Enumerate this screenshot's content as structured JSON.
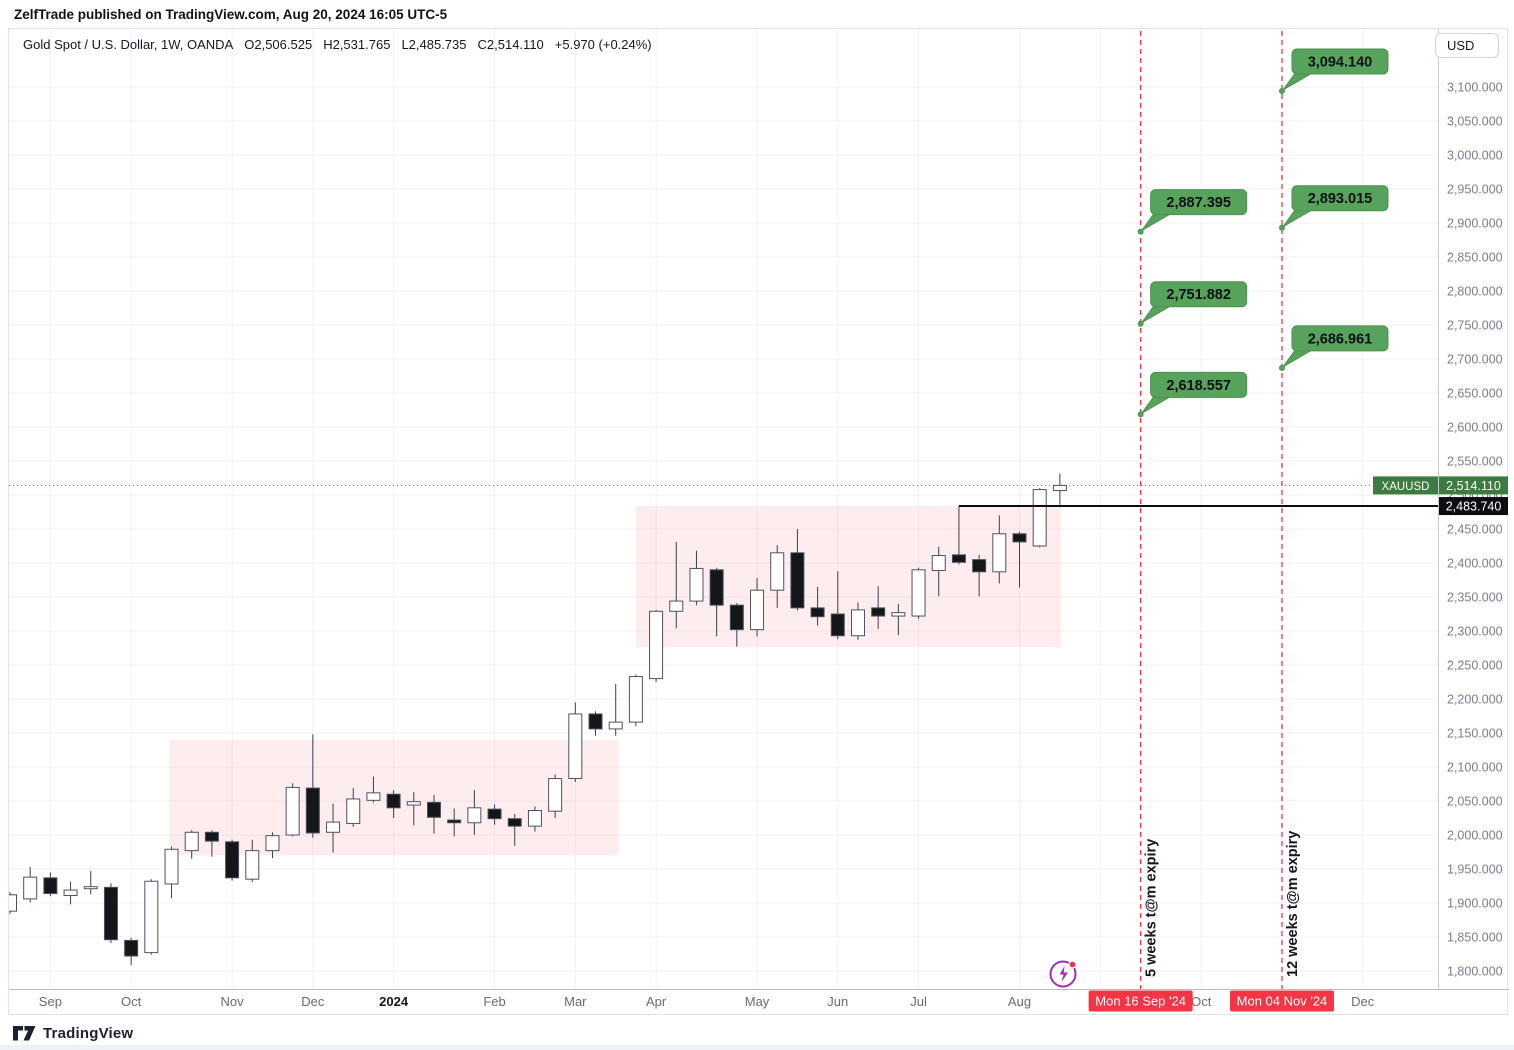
{
  "header": {
    "attribution": "ZelfTrade published on TradingView.com, Aug 20, 2024 16:05 UTC-5"
  },
  "legend": {
    "symbol_title": "Gold Spot / U.S. Dollar, 1W, OANDA",
    "ohlc_open": "O2,506.525",
    "ohlc_high": "H2,531.765",
    "ohlc_low": "L2,485.735",
    "ohlc_close": "C2,514.110",
    "change": "+5.970 (+0.24%)"
  },
  "axis_right": {
    "currency_label": "USD",
    "tick_min": 1800,
    "tick_max": 3100,
    "tick_step": 50,
    "current_price_label": "2,514.110",
    "symbol_tag": "XAUUSD",
    "ath_price_label": "2,483.740"
  },
  "axis_bottom": {
    "month_labels": [
      {
        "label": "Sep",
        "week": 2,
        "bold": false
      },
      {
        "label": "Oct",
        "week": 6,
        "bold": false
      },
      {
        "label": "Nov",
        "week": 11,
        "bold": false
      },
      {
        "label": "Dec",
        "week": 15,
        "bold": false
      },
      {
        "label": "2024",
        "week": 19,
        "bold": true
      },
      {
        "label": "Feb",
        "week": 24,
        "bold": false
      },
      {
        "label": "Mar",
        "week": 28,
        "bold": false
      },
      {
        "label": "Apr",
        "week": 32,
        "bold": false
      },
      {
        "label": "May",
        "week": 37,
        "bold": false
      },
      {
        "label": "Jun",
        "week": 41,
        "bold": false
      },
      {
        "label": "Jul",
        "week": 45,
        "bold": false
      },
      {
        "label": "Aug",
        "week": 50,
        "bold": false
      },
      {
        "label": "Oct",
        "week": 59,
        "bold": false
      },
      {
        "label": "Dec",
        "week": 67,
        "bold": false
      }
    ],
    "grid_weeks": [
      2,
      6,
      11,
      15,
      19,
      24,
      28,
      32,
      37,
      41,
      45,
      50,
      54,
      59,
      63,
      67
    ],
    "event_labels": [
      {
        "label": "Mon 16 Sep '24",
        "week": 56,
        "width": 104
      },
      {
        "label": "Mon 04 Nov '24",
        "week": 63,
        "width": 104
      }
    ]
  },
  "footer": {
    "brand": "TradingView"
  },
  "colors": {
    "label_green": "#3e7b41",
    "callout_green": "#57a35c",
    "callout_green_border": "#4a9150",
    "red": "#f23645",
    "purple": "#a02db8",
    "candle_up_fill": "#ffffff",
    "candle_down_fill": "#14161a",
    "candle_border": "#4d525f",
    "wick": "#3b3f4a",
    "zone_pink": "rgba(242,54,69,0.09)",
    "ath_line": "#0b0d12",
    "grid": "#f0f2f7",
    "axis_text": "#7a7e8a",
    "month_text": "#686c78",
    "dark_text": "#131722",
    "axis_line": "#b9bcc5",
    "separator": "#c7cad3"
  },
  "chart_data": {
    "type": "candlestick",
    "symbol": "XAUUSD",
    "title": "Gold Spot / U.S. Dollar",
    "interval": "1W",
    "exchange": "OANDA",
    "ylabel": "USD",
    "price_range": [
      1800,
      3100
    ],
    "grid": true,
    "current_price": 2514.11,
    "ath_line_price": 2483.74,
    "ath_line_from_week": 47,
    "candles_note": "columns: week_start_date, open, high, low, close",
    "candles": [
      [
        "2023-08-21",
        1888,
        1916,
        1884,
        1912
      ],
      [
        "2023-08-28",
        1906,
        1953,
        1901,
        1938
      ],
      [
        "2023-09-04",
        1937,
        1945,
        1910,
        1914
      ],
      [
        "2023-09-11",
        1911,
        1931,
        1898,
        1919
      ],
      [
        "2023-09-18",
        1921,
        1947,
        1913,
        1924
      ],
      [
        "2023-09-25",
        1923,
        1929,
        1841,
        1846
      ],
      [
        "2023-10-02",
        1845,
        1849,
        1809,
        1822
      ],
      [
        "2023-10-09",
        1827,
        1935,
        1824,
        1932
      ],
      [
        "2023-10-16",
        1928,
        1983,
        1907,
        1979
      ],
      [
        "2023-10-23",
        1977,
        2007,
        1965,
        2004
      ],
      [
        "2023-10-30",
        2004,
        2007,
        1968,
        1991
      ],
      [
        "2023-11-06",
        1990,
        1993,
        1933,
        1937
      ],
      [
        "2023-11-13",
        1935,
        1993,
        1931,
        1977
      ],
      [
        "2023-11-20",
        1977,
        2004,
        1966,
        1999
      ],
      [
        "2023-11-27",
        2000,
        2076,
        1998,
        2070
      ],
      [
        "2023-12-04",
        2069,
        2148,
        1996,
        2003
      ],
      [
        "2023-12-11",
        2004,
        2046,
        1974,
        2019
      ],
      [
        "2023-12-18",
        2017,
        2069,
        2012,
        2053
      ],
      [
        "2023-12-25",
        2051,
        2086,
        2048,
        2062
      ],
      [
        "2024-01-01",
        2060,
        2066,
        2025,
        2040
      ],
      [
        "2024-01-08",
        2044,
        2063,
        2014,
        2049
      ],
      [
        "2024-01-15",
        2048,
        2059,
        2002,
        2026
      ],
      [
        "2024-01-22",
        2022,
        2039,
        1998,
        2018
      ],
      [
        "2024-01-29",
        2018,
        2066,
        2000,
        2040
      ],
      [
        "2024-02-05",
        2038,
        2045,
        2015,
        2024
      ],
      [
        "2024-02-12",
        2024,
        2031,
        1984,
        2013
      ],
      [
        "2024-02-19",
        2013,
        2042,
        2005,
        2036
      ],
      [
        "2024-02-26",
        2035,
        2089,
        2025,
        2083
      ],
      [
        "2024-03-04",
        2083,
        2195,
        2078,
        2178
      ],
      [
        "2024-03-11",
        2178,
        2182,
        2146,
        2156
      ],
      [
        "2024-03-18",
        2156,
        2222,
        2146,
        2166
      ],
      [
        "2024-03-25",
        2166,
        2236,
        2160,
        2233
      ],
      [
        "2024-04-01",
        2230,
        2331,
        2225,
        2329
      ],
      [
        "2024-04-08",
        2329,
        2431,
        2304,
        2344
      ],
      [
        "2024-04-15",
        2344,
        2418,
        2338,
        2392
      ],
      [
        "2024-04-22",
        2390,
        2393,
        2292,
        2338
      ],
      [
        "2024-04-29",
        2338,
        2341,
        2277,
        2302
      ],
      [
        "2024-05-06",
        2302,
        2378,
        2292,
        2360
      ],
      [
        "2024-05-13",
        2360,
        2426,
        2334,
        2415
      ],
      [
        "2024-05-20",
        2415,
        2450,
        2330,
        2334
      ],
      [
        "2024-05-27",
        2334,
        2365,
        2308,
        2321
      ],
      [
        "2024-06-03",
        2325,
        2388,
        2288,
        2293
      ],
      [
        "2024-06-10",
        2293,
        2342,
        2287,
        2331
      ],
      [
        "2024-06-17",
        2334,
        2366,
        2303,
        2322
      ],
      [
        "2024-06-24",
        2322,
        2340,
        2294,
        2327
      ],
      [
        "2024-07-01",
        2322,
        2393,
        2318,
        2390
      ],
      [
        "2024-07-08",
        2389,
        2424,
        2351,
        2411
      ],
      [
        "2024-07-15",
        2412,
        2483.74,
        2398,
        2401
      ],
      [
        "2024-07-22",
        2405,
        2412,
        2351,
        2387
      ],
      [
        "2024-07-29",
        2387,
        2470,
        2370,
        2443
      ],
      [
        "2024-08-05",
        2443,
        2446,
        2364,
        2431
      ],
      [
        "2024-08-12",
        2425,
        2510,
        2423,
        2508
      ],
      [
        "2024-08-19",
        2506.525,
        2531.765,
        2485.735,
        2514.11
      ]
    ],
    "zones": [
      {
        "name": "consolidation-zone-1",
        "week_from": 7.9,
        "week_to": 30.15,
        "price_top": 2140,
        "price_bottom": 1970
      },
      {
        "name": "consolidation-zone-2",
        "week_from": 31.0,
        "week_to": 52.05,
        "price_top": 2484,
        "price_bottom": 2276
      }
    ],
    "vlines": [
      {
        "week": 56,
        "date_label": "Mon 16 Sep '24",
        "caption": "5 weeks t@m expiry"
      },
      {
        "week": 63,
        "date_label": "Mon 04 Nov '24",
        "caption": "12 weeks t@m expiry"
      }
    ],
    "callouts": [
      {
        "text": "2,887.395",
        "price": 2887.395,
        "week": 56
      },
      {
        "text": "2,751.882",
        "price": 2751.882,
        "week": 56
      },
      {
        "text": "2,618.557",
        "price": 2618.557,
        "week": 56
      },
      {
        "text": "3,094.140",
        "price": 3094.14,
        "week": 63
      },
      {
        "text": "2,893.015",
        "price": 2893.015,
        "week": 63
      },
      {
        "text": "2,686.961",
        "price": 2686.961,
        "week": 63
      }
    ]
  }
}
